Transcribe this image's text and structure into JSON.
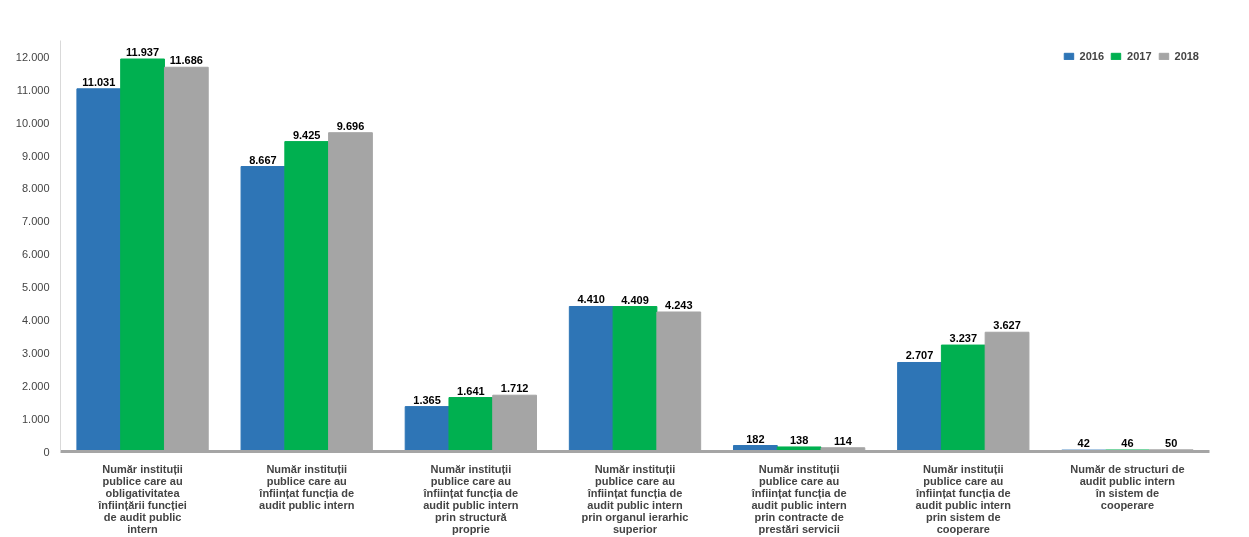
{
  "chart_data": {
    "type": "bar",
    "categories": [
      "Număr instituții publice care au obligativitatea înființării funcției de audit public intern",
      "Număr instituții publice care au înființat funcția de audit public intern",
      "Număr instituții publice care au înființat funcția de audit public intern prin structură proprie",
      "Număr instituții publice care au înființat funcția de audit public intern prin organul ierarhic superior",
      "Număr instituții publice care au înființat funcția de audit public intern prin contracte de prestări servicii",
      "Număr instituții publice care au înființat funcția de audit public intern prin sistem de cooperare",
      "Număr de structuri de audit public intern în sistem de cooperare"
    ],
    "series": [
      {
        "name": "2016",
        "color": "#2e75b6",
        "values": [
          11031,
          8667,
          1365,
          4410,
          182,
          2707,
          42
        ],
        "value_labels": [
          "11.031",
          "8.667",
          "1.365",
          "4.410",
          "182",
          "2.707",
          "42"
        ]
      },
      {
        "name": "2017",
        "color": "#00b050",
        "values": [
          11937,
          9425,
          1641,
          4409,
          138,
          3237,
          46
        ],
        "value_labels": [
          "11.937",
          "9.425",
          "1.641",
          "4.409",
          "138",
          "3.237",
          "46"
        ]
      },
      {
        "name": "2018",
        "color": "#a5a5a5",
        "values": [
          11686,
          9696,
          1712,
          4243,
          114,
          3627,
          50
        ],
        "value_labels": [
          "11.686",
          "9.696",
          "1.712",
          "4.243",
          "114",
          "3.627",
          "50"
        ]
      }
    ],
    "ylim": [
      0,
      12500
    ],
    "yticks": [
      0,
      {
        "value": 1000,
        "label": "1.000"
      },
      {
        "value": 2000,
        "label": "2.000"
      },
      {
        "value": 3000,
        "label": "3.000"
      },
      {
        "value": 4000,
        "label": "4.000"
      },
      {
        "value": 5000,
        "label": "5.000"
      },
      {
        "value": 6000,
        "label": "6.000"
      },
      {
        "value": 7000,
        "label": "7.000"
      },
      {
        "value": 8000,
        "label": "8.000"
      },
      {
        "value": 9000,
        "label": "9.000"
      },
      {
        "value": 10000,
        "label": "10.000"
      },
      {
        "value": 11000,
        "label": "11.000"
      },
      {
        "value": 12000,
        "label": "12.000"
      }
    ],
    "legend": "top right",
    "grid": false
  }
}
